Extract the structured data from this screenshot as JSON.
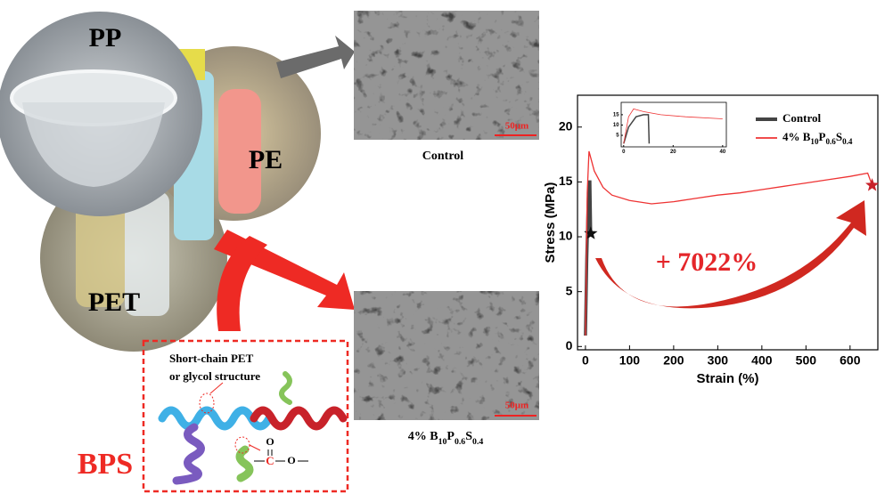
{
  "photos": {
    "pp": "PP",
    "pe": "PE",
    "pet": "PET"
  },
  "sem": {
    "top_label": "Control",
    "bottom_label": "4% B10P0.6S0.4",
    "top_scale": "50μm",
    "bottom_scale": "50μm"
  },
  "bps": {
    "title": "BPS",
    "note_line1": "Short-chain PET",
    "note_line2": "or glycol structure",
    "carbonyl_o": "O",
    "carbon": "C",
    "ester_o": "O"
  },
  "chart_data": [
    {
      "type": "line",
      "xlabel": "Strain (%)",
      "ylabel": "Stress (MPa)",
      "annotation": "+ 7022%",
      "xlim": [
        -18,
        663
      ],
      "ylim": [
        -0.3,
        22.9
      ],
      "xticks": [
        0,
        100,
        200,
        300,
        400,
        500,
        600
      ],
      "yticks": [
        0,
        5,
        10,
        15,
        20
      ],
      "end_marker": "star",
      "legend": "upper right",
      "series": [
        {
          "name": "Control",
          "color": "#444444",
          "x": [
            0,
            3,
            6,
            8,
            10,
            12
          ],
          "values": [
            1,
            8,
            13,
            15,
            15,
            10.3
          ]
        },
        {
          "name": "4% B10P0.6S0.4",
          "color": "#ee3333",
          "x": [
            0,
            4,
            8,
            20,
            40,
            60,
            100,
            150,
            200,
            250,
            300,
            350,
            400,
            450,
            500,
            550,
            600,
            640,
            650
          ],
          "values": [
            1,
            14,
            17.8,
            16,
            14.5,
            13.8,
            13.3,
            13,
            13.2,
            13.5,
            13.8,
            14,
            14.3,
            14.6,
            14.9,
            15.2,
            15.5,
            15.8,
            14.7
          ]
        }
      ]
    },
    {
      "type": "line",
      "xlim": [
        -1,
        41.5
      ],
      "ylim": [
        -0.6,
        21
      ],
      "xticks": [
        0,
        20,
        40
      ],
      "yticks": [
        5,
        10,
        15
      ],
      "series": [
        {
          "color": "#444444",
          "x": [
            0,
            2,
            5,
            8,
            10,
            10.3
          ],
          "values": [
            1,
            9,
            14,
            15,
            15,
            1
          ]
        },
        {
          "color": "#ee3333",
          "x": [
            0,
            2,
            4,
            8,
            15,
            25,
            40
          ],
          "values": [
            1,
            14,
            17.8,
            16.5,
            15,
            14,
            13
          ]
        }
      ]
    }
  ]
}
